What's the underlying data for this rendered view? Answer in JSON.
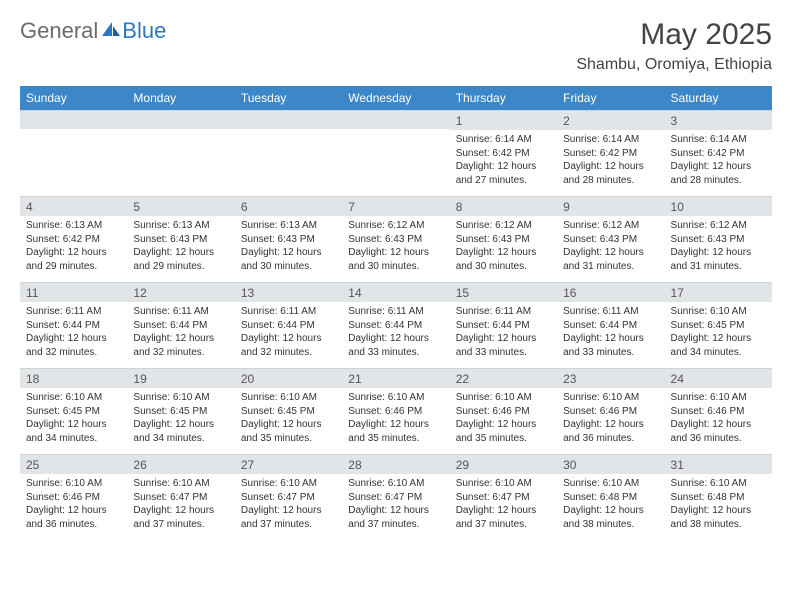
{
  "logo": {
    "part1": "General",
    "part2": "Blue"
  },
  "title": "May 2025",
  "location": "Shambu, Oromiya, Ethiopia",
  "colors": {
    "header_bg": "#3b87c8",
    "band_bg": "#e2e5e8",
    "logo_blue": "#2b78c2",
    "logo_gray": "#6b6b6b"
  },
  "weekdays": [
    "Sunday",
    "Monday",
    "Tuesday",
    "Wednesday",
    "Thursday",
    "Friday",
    "Saturday"
  ],
  "weeks": [
    [
      {
        "n": "",
        "sr": "",
        "ss": "",
        "dl": ""
      },
      {
        "n": "",
        "sr": "",
        "ss": "",
        "dl": ""
      },
      {
        "n": "",
        "sr": "",
        "ss": "",
        "dl": ""
      },
      {
        "n": "",
        "sr": "",
        "ss": "",
        "dl": ""
      },
      {
        "n": "1",
        "sr": "Sunrise: 6:14 AM",
        "ss": "Sunset: 6:42 PM",
        "dl": "Daylight: 12 hours and 27 minutes."
      },
      {
        "n": "2",
        "sr": "Sunrise: 6:14 AM",
        "ss": "Sunset: 6:42 PM",
        "dl": "Daylight: 12 hours and 28 minutes."
      },
      {
        "n": "3",
        "sr": "Sunrise: 6:14 AM",
        "ss": "Sunset: 6:42 PM",
        "dl": "Daylight: 12 hours and 28 minutes."
      }
    ],
    [
      {
        "n": "4",
        "sr": "Sunrise: 6:13 AM",
        "ss": "Sunset: 6:42 PM",
        "dl": "Daylight: 12 hours and 29 minutes."
      },
      {
        "n": "5",
        "sr": "Sunrise: 6:13 AM",
        "ss": "Sunset: 6:43 PM",
        "dl": "Daylight: 12 hours and 29 minutes."
      },
      {
        "n": "6",
        "sr": "Sunrise: 6:13 AM",
        "ss": "Sunset: 6:43 PM",
        "dl": "Daylight: 12 hours and 30 minutes."
      },
      {
        "n": "7",
        "sr": "Sunrise: 6:12 AM",
        "ss": "Sunset: 6:43 PM",
        "dl": "Daylight: 12 hours and 30 minutes."
      },
      {
        "n": "8",
        "sr": "Sunrise: 6:12 AM",
        "ss": "Sunset: 6:43 PM",
        "dl": "Daylight: 12 hours and 30 minutes."
      },
      {
        "n": "9",
        "sr": "Sunrise: 6:12 AM",
        "ss": "Sunset: 6:43 PM",
        "dl": "Daylight: 12 hours and 31 minutes."
      },
      {
        "n": "10",
        "sr": "Sunrise: 6:12 AM",
        "ss": "Sunset: 6:43 PM",
        "dl": "Daylight: 12 hours and 31 minutes."
      }
    ],
    [
      {
        "n": "11",
        "sr": "Sunrise: 6:11 AM",
        "ss": "Sunset: 6:44 PM",
        "dl": "Daylight: 12 hours and 32 minutes."
      },
      {
        "n": "12",
        "sr": "Sunrise: 6:11 AM",
        "ss": "Sunset: 6:44 PM",
        "dl": "Daylight: 12 hours and 32 minutes."
      },
      {
        "n": "13",
        "sr": "Sunrise: 6:11 AM",
        "ss": "Sunset: 6:44 PM",
        "dl": "Daylight: 12 hours and 32 minutes."
      },
      {
        "n": "14",
        "sr": "Sunrise: 6:11 AM",
        "ss": "Sunset: 6:44 PM",
        "dl": "Daylight: 12 hours and 33 minutes."
      },
      {
        "n": "15",
        "sr": "Sunrise: 6:11 AM",
        "ss": "Sunset: 6:44 PM",
        "dl": "Daylight: 12 hours and 33 minutes."
      },
      {
        "n": "16",
        "sr": "Sunrise: 6:11 AM",
        "ss": "Sunset: 6:44 PM",
        "dl": "Daylight: 12 hours and 33 minutes."
      },
      {
        "n": "17",
        "sr": "Sunrise: 6:10 AM",
        "ss": "Sunset: 6:45 PM",
        "dl": "Daylight: 12 hours and 34 minutes."
      }
    ],
    [
      {
        "n": "18",
        "sr": "Sunrise: 6:10 AM",
        "ss": "Sunset: 6:45 PM",
        "dl": "Daylight: 12 hours and 34 minutes."
      },
      {
        "n": "19",
        "sr": "Sunrise: 6:10 AM",
        "ss": "Sunset: 6:45 PM",
        "dl": "Daylight: 12 hours and 34 minutes."
      },
      {
        "n": "20",
        "sr": "Sunrise: 6:10 AM",
        "ss": "Sunset: 6:45 PM",
        "dl": "Daylight: 12 hours and 35 minutes."
      },
      {
        "n": "21",
        "sr": "Sunrise: 6:10 AM",
        "ss": "Sunset: 6:46 PM",
        "dl": "Daylight: 12 hours and 35 minutes."
      },
      {
        "n": "22",
        "sr": "Sunrise: 6:10 AM",
        "ss": "Sunset: 6:46 PM",
        "dl": "Daylight: 12 hours and 35 minutes."
      },
      {
        "n": "23",
        "sr": "Sunrise: 6:10 AM",
        "ss": "Sunset: 6:46 PM",
        "dl": "Daylight: 12 hours and 36 minutes."
      },
      {
        "n": "24",
        "sr": "Sunrise: 6:10 AM",
        "ss": "Sunset: 6:46 PM",
        "dl": "Daylight: 12 hours and 36 minutes."
      }
    ],
    [
      {
        "n": "25",
        "sr": "Sunrise: 6:10 AM",
        "ss": "Sunset: 6:46 PM",
        "dl": "Daylight: 12 hours and 36 minutes."
      },
      {
        "n": "26",
        "sr": "Sunrise: 6:10 AM",
        "ss": "Sunset: 6:47 PM",
        "dl": "Daylight: 12 hours and 37 minutes."
      },
      {
        "n": "27",
        "sr": "Sunrise: 6:10 AM",
        "ss": "Sunset: 6:47 PM",
        "dl": "Daylight: 12 hours and 37 minutes."
      },
      {
        "n": "28",
        "sr": "Sunrise: 6:10 AM",
        "ss": "Sunset: 6:47 PM",
        "dl": "Daylight: 12 hours and 37 minutes."
      },
      {
        "n": "29",
        "sr": "Sunrise: 6:10 AM",
        "ss": "Sunset: 6:47 PM",
        "dl": "Daylight: 12 hours and 37 minutes."
      },
      {
        "n": "30",
        "sr": "Sunrise: 6:10 AM",
        "ss": "Sunset: 6:48 PM",
        "dl": "Daylight: 12 hours and 38 minutes."
      },
      {
        "n": "31",
        "sr": "Sunrise: 6:10 AM",
        "ss": "Sunset: 6:48 PM",
        "dl": "Daylight: 12 hours and 38 minutes."
      }
    ]
  ]
}
